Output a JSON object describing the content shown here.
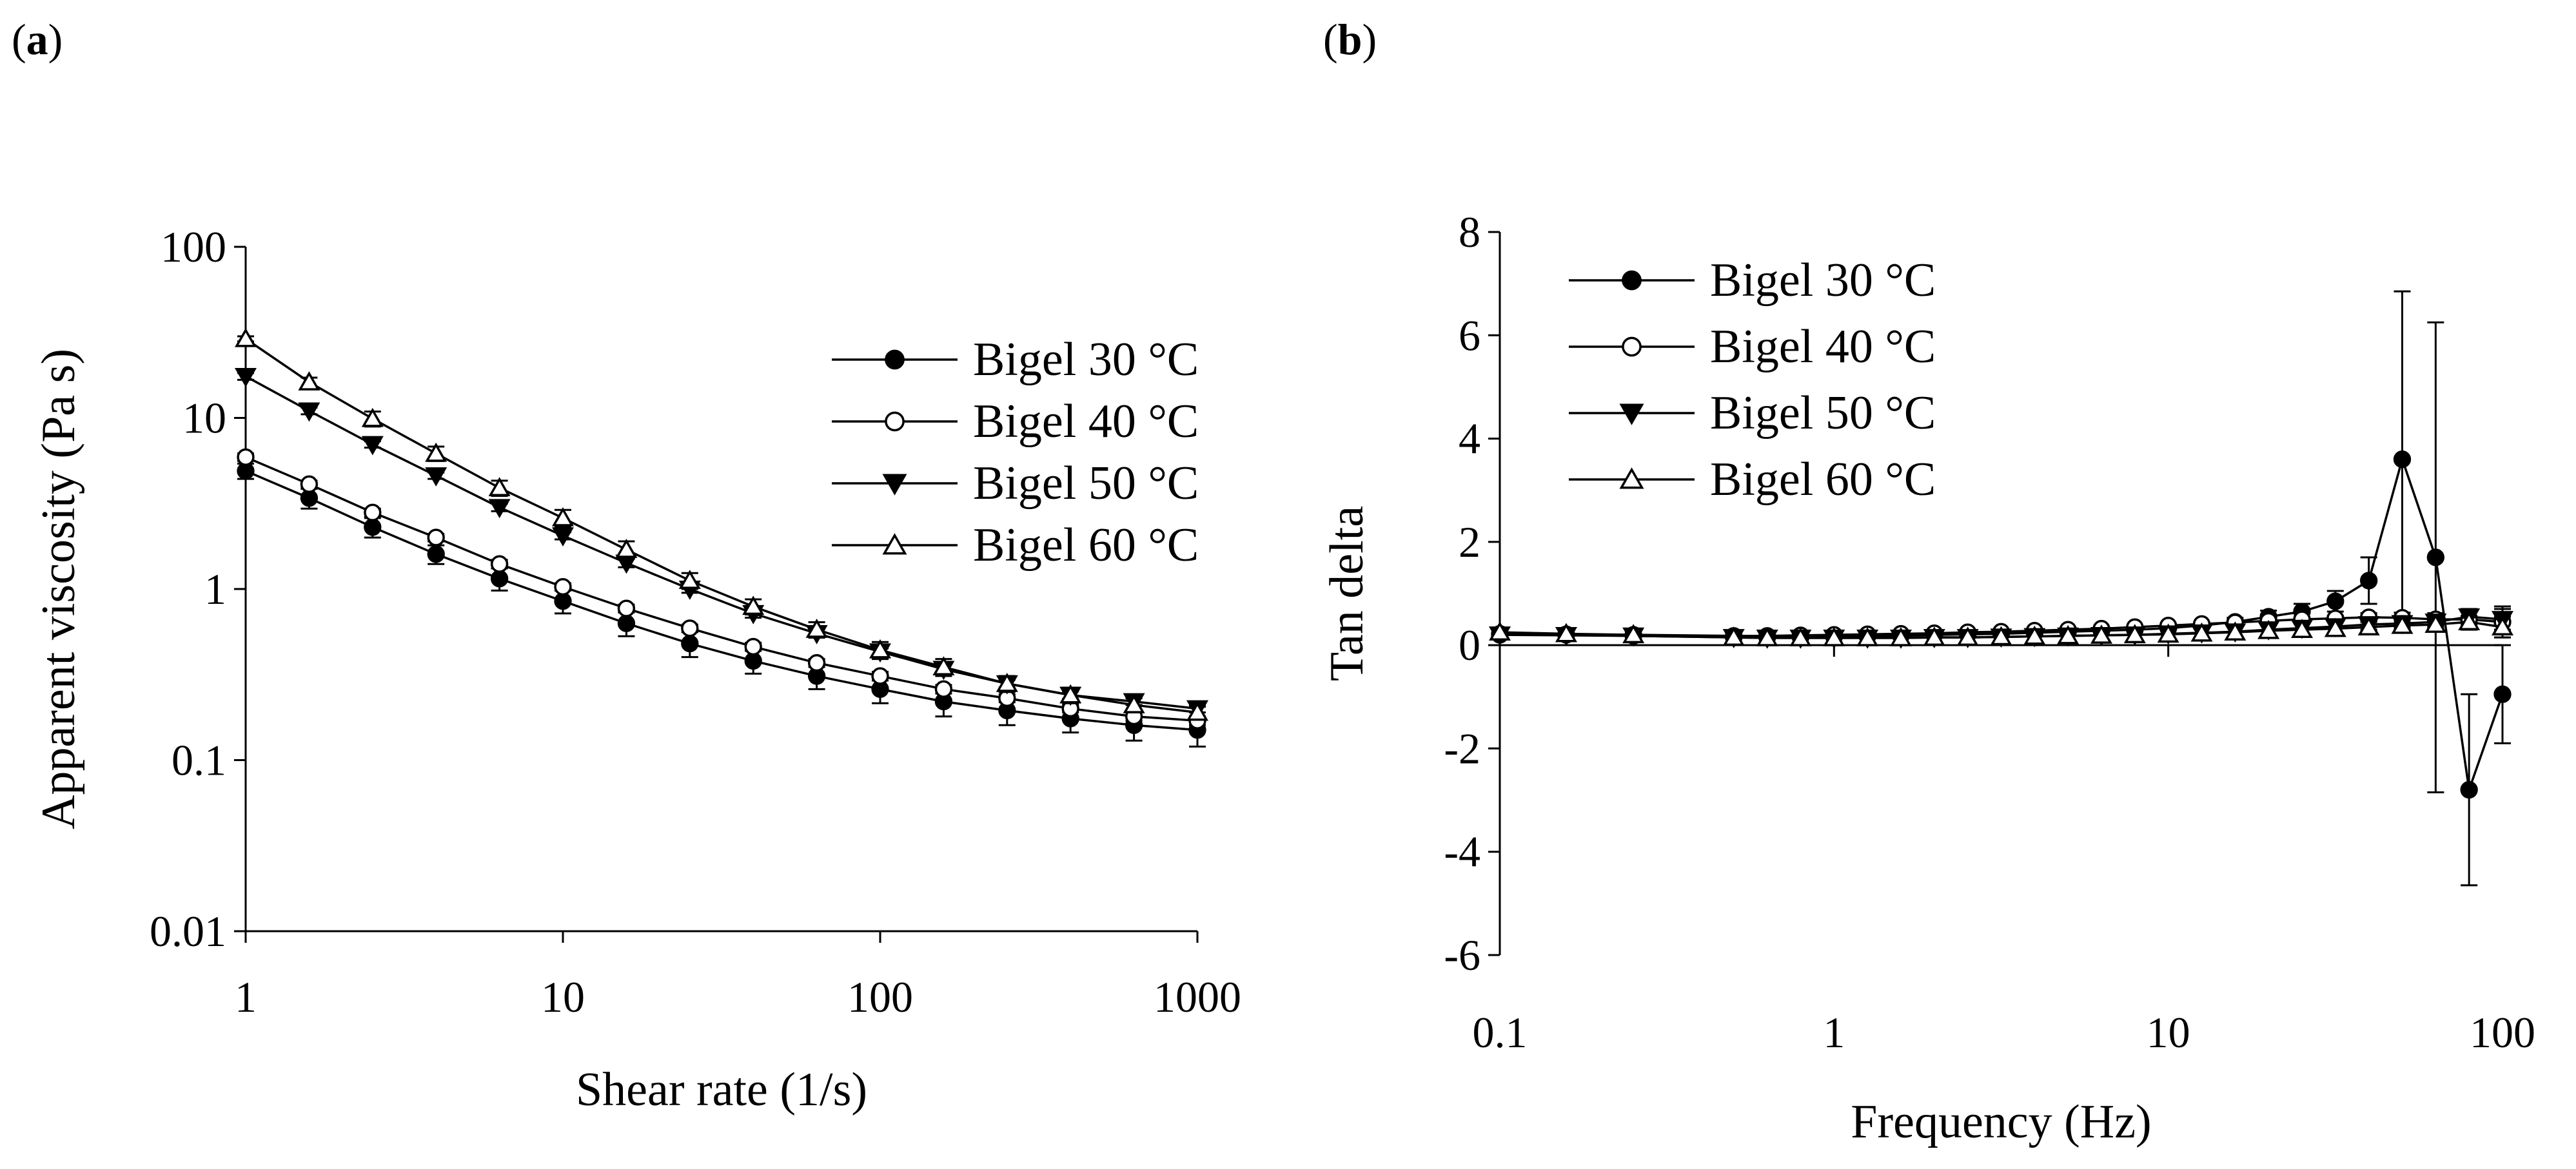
{
  "figure": {
    "panel_a": {
      "label_open": "(",
      "label_letter": "a",
      "label_close": ")"
    },
    "panel_b": {
      "label_open": "(",
      "label_letter": "b",
      "label_close": ")"
    }
  },
  "colors": {
    "filled": "#000000",
    "open": "#ffffff",
    "line": "#000000"
  },
  "chart_data": [
    {
      "type": "line",
      "id": "a",
      "title": "",
      "xlabel": "Shear rate (1/s)",
      "ylabel": "Apparent viscosity (Pa s)",
      "xscale": "log",
      "yscale": "log",
      "xlim": [
        1,
        1000
      ],
      "ylim": [
        0.01,
        100
      ],
      "xticks": [
        1,
        10,
        100,
        1000
      ],
      "xtick_labels": [
        "1",
        "10",
        "100",
        "1000"
      ],
      "yticks": [
        0.01,
        0.1,
        1,
        10,
        100
      ],
      "ytick_labels": [
        "0.01",
        "0.1",
        "1",
        "10",
        "100"
      ],
      "legend_position": "right",
      "x": [
        1,
        1.585,
        2.512,
        3.981,
        6.31,
        10,
        15.85,
        25.12,
        39.81,
        63.1,
        100,
        158.5,
        251.2,
        398.1,
        631,
        1000
      ],
      "series": [
        {
          "name": "Bigel 30 °C",
          "marker": "circle",
          "fill": "filled",
          "values": [
            4.9,
            3.4,
            2.3,
            1.6,
            1.15,
            0.85,
            0.63,
            0.48,
            0.38,
            0.31,
            0.26,
            0.22,
            0.195,
            0.175,
            0.16,
            0.15
          ],
          "errors": [
            0.5,
            0.45,
            0.3,
            0.2,
            0.17,
            0.13,
            0.1,
            0.08,
            0.06,
            0.05,
            0.045,
            0.04,
            0.035,
            0.03,
            0.03,
            0.03
          ]
        },
        {
          "name": "Bigel 40 °C",
          "marker": "circle",
          "fill": "open",
          "values": [
            5.9,
            4.1,
            2.8,
            2.0,
            1.4,
            1.03,
            0.77,
            0.59,
            0.46,
            0.37,
            0.31,
            0.26,
            0.23,
            0.2,
            0.18,
            0.17
          ],
          "errors": [
            0.3,
            0.2,
            0.15,
            0.1,
            0.08,
            0.05,
            0.04,
            0.03,
            0.025,
            0.02,
            0.018,
            0.015,
            0.012,
            0.01,
            0.01,
            0.01
          ]
        },
        {
          "name": "Bigel 50 °C",
          "marker": "triangle-down",
          "fill": "filled",
          "values": [
            17.5,
            11.0,
            7.0,
            4.6,
            3.0,
            2.05,
            1.42,
            1.0,
            0.72,
            0.55,
            0.43,
            0.34,
            0.28,
            0.24,
            0.22,
            0.2
          ],
          "errors": [
            0.8,
            0.5,
            0.3,
            0.2,
            0.15,
            0.1,
            0.08,
            0.05,
            0.04,
            0.03,
            0.02,
            0.02,
            0.015,
            0.012,
            0.01,
            0.01
          ]
        },
        {
          "name": "Bigel 60 °C",
          "marker": "triangle-up",
          "fill": "open",
          "values": [
            29,
            16.2,
            9.9,
            6.2,
            3.9,
            2.6,
            1.7,
            1.12,
            0.79,
            0.58,
            0.44,
            0.35,
            0.28,
            0.24,
            0.21,
            0.19
          ],
          "errors": [
            1.0,
            1.0,
            1.0,
            0.6,
            0.4,
            0.3,
            0.2,
            0.12,
            0.08,
            0.06,
            0.05,
            0.04,
            0.03,
            0.025,
            0.02,
            0.015
          ]
        }
      ]
    },
    {
      "type": "line",
      "id": "b",
      "title": "",
      "xlabel": "Frequency (Hz)",
      "ylabel": "Tan delta",
      "xscale": "log",
      "yscale": "linear",
      "xlim": [
        0.1,
        100
      ],
      "ylim": [
        -6,
        8
      ],
      "xticks": [
        0.1,
        1,
        10,
        100
      ],
      "xtick_labels": [
        "0.1",
        "1",
        "10",
        "100"
      ],
      "yticks": [
        -6,
        -4,
        -2,
        0,
        2,
        4,
        6,
        8
      ],
      "ytick_labels": [
        "-6",
        "-4",
        "-2",
        "0",
        "2",
        "4",
        "6",
        "8"
      ],
      "legend_position": "top-left",
      "x": [
        0.1,
        0.158,
        0.251,
        0.501,
        0.631,
        0.794,
        1,
        1.259,
        1.585,
        1.995,
        2.512,
        3.162,
        3.981,
        5.012,
        6.31,
        7.943,
        10,
        12.59,
        15.85,
        19.95,
        25.12,
        31.62,
        39.81,
        50.12,
        63.1,
        79.43,
        100
      ],
      "series": [
        {
          "name": "Bigel 30 °C",
          "marker": "circle",
          "fill": "filled",
          "values": [
            0.2,
            0.2,
            0.18,
            0.15,
            0.15,
            0.15,
            0.16,
            0.17,
            0.18,
            0.2,
            0.21,
            0.22,
            0.24,
            0.26,
            0.28,
            0.3,
            0.33,
            0.38,
            0.45,
            0.55,
            0.65,
            0.85,
            1.25,
            3.6,
            1.7,
            -2.8,
            -0.95
          ],
          "errors": [
            0,
            0,
            0,
            0,
            0,
            0,
            0,
            0,
            0,
            0,
            0,
            0,
            0,
            0,
            0,
            0,
            0,
            0.05,
            0.08,
            0.12,
            0.15,
            0.2,
            0.45,
            3.25,
            4.55,
            1.85,
            0.95
          ]
        },
        {
          "name": "Bigel 40 °C",
          "marker": "circle",
          "fill": "open",
          "values": [
            0.22,
            0.21,
            0.2,
            0.18,
            0.18,
            0.19,
            0.2,
            0.21,
            0.22,
            0.23,
            0.25,
            0.26,
            0.28,
            0.3,
            0.32,
            0.35,
            0.38,
            0.41,
            0.44,
            0.47,
            0.5,
            0.52,
            0.54,
            0.53,
            0.5,
            0.5,
            0.45
          ],
          "errors": [
            0,
            0,
            0,
            0,
            0,
            0,
            0,
            0,
            0,
            0,
            0,
            0,
            0,
            0,
            0,
            0,
            0,
            0,
            0,
            0,
            0,
            0.05,
            0.08,
            0.1,
            0.12,
            0.2,
            0.3
          ]
        },
        {
          "name": "Bigel 50 °C",
          "marker": "triangle-down",
          "fill": "filled",
          "values": [
            0.2,
            0.19,
            0.18,
            0.15,
            0.14,
            0.14,
            0.14,
            0.14,
            0.14,
            0.15,
            0.15,
            0.16,
            0.17,
            0.18,
            0.19,
            0.2,
            0.22,
            0.24,
            0.26,
            0.3,
            0.33,
            0.36,
            0.4,
            0.42,
            0.45,
            0.55,
            0.5
          ],
          "errors": [
            0,
            0,
            0,
            0,
            0,
            0,
            0,
            0,
            0,
            0,
            0,
            0,
            0,
            0,
            0,
            0,
            0,
            0,
            0,
            0,
            0,
            0,
            0.05,
            0.08,
            0.1,
            0.15,
            0.2
          ]
        },
        {
          "name": "Bigel 60 °C",
          "marker": "triangle-up",
          "fill": "open",
          "values": [
            0.25,
            0.22,
            0.2,
            0.15,
            0.14,
            0.14,
            0.14,
            0.14,
            0.14,
            0.15,
            0.15,
            0.16,
            0.17,
            0.18,
            0.19,
            0.2,
            0.21,
            0.23,
            0.25,
            0.28,
            0.3,
            0.32,
            0.35,
            0.38,
            0.4,
            0.45,
            0.35
          ],
          "errors": [
            0,
            0,
            0,
            0,
            0,
            0,
            0,
            0,
            0,
            0,
            0,
            0,
            0,
            0,
            0,
            0,
            0,
            0,
            0,
            0,
            0,
            0,
            0.05,
            0.06,
            0.08,
            0.12,
            0.2
          ]
        }
      ]
    }
  ]
}
